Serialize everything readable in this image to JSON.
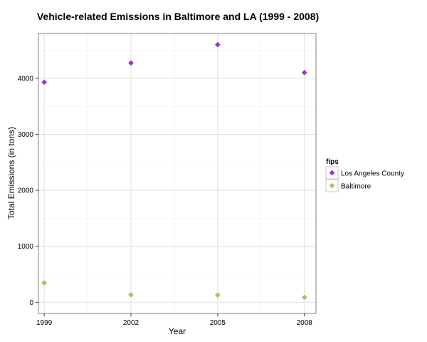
{
  "chart_data": {
    "type": "scatter",
    "title": "Vehicle-related Emissions in Baltimore and LA (1999 - 2008)",
    "xlabel": "Year",
    "ylabel": "Total Emissions (in tons)",
    "x": [
      1999,
      2002,
      2005,
      2008
    ],
    "x_ticks": [
      "1999",
      "2002",
      "2005",
      "2008"
    ],
    "y_ticks": [
      "0",
      "1000",
      "2000",
      "3000",
      "4000"
    ],
    "y_tick_values": [
      0,
      1000,
      2000,
      3000,
      4000
    ],
    "xlim": [
      1998.8,
      2008.4
    ],
    "ylim": [
      -200,
      4800
    ],
    "grid": true,
    "legend_title": "fips",
    "legend_position": "right",
    "series": [
      {
        "name": "Los Angeles County",
        "color": "#9933cc",
        "values": [
          3931,
          4274,
          4601,
          4101
        ]
      },
      {
        "name": "Baltimore",
        "color": "#99cc55",
        "values": [
          347,
          134,
          130,
          88
        ]
      }
    ]
  }
}
